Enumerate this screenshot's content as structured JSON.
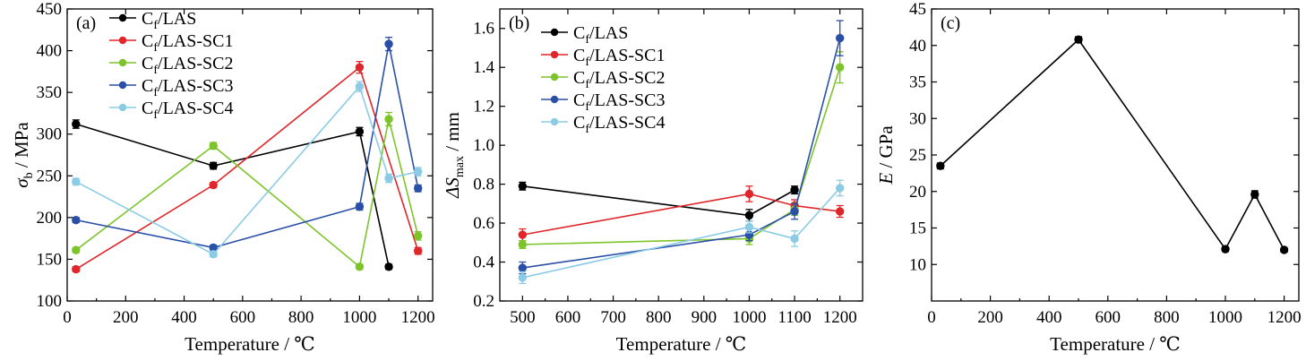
{
  "chart_data": [
    {
      "type": "line",
      "panel_label": "(a)",
      "xlabel": "Temperature / ℃",
      "ylabel": "σb / MPa",
      "xlim": [
        0,
        1250
      ],
      "ylim": [
        100,
        450
      ],
      "xticks": [
        0,
        200,
        400,
        600,
        800,
        1000,
        1200
      ],
      "yticks": [
        100,
        150,
        200,
        250,
        300,
        350,
        400,
        450
      ],
      "legend_position": "top-left",
      "series": [
        {
          "name": "Cf/LAS",
          "color": "#000000",
          "x": [
            30,
            500,
            1000,
            1100
          ],
          "y": [
            312,
            262,
            303,
            141
          ],
          "err": [
            5,
            4,
            5,
            3
          ]
        },
        {
          "name": "Cf/LAS-SC1",
          "color": "#e0262a",
          "x": [
            30,
            500,
            1000,
            1200
          ],
          "y": [
            138,
            239,
            380,
            160
          ],
          "err": [
            3,
            3,
            7,
            4
          ]
        },
        {
          "name": "Cf/LAS-SC2",
          "color": "#7dc42a",
          "x": [
            30,
            500,
            1000,
            1100,
            1200
          ],
          "y": [
            161,
            286,
            141,
            318,
            178
          ],
          "err": [
            3,
            4,
            3,
            8,
            5
          ]
        },
        {
          "name": "Cf/LAS-SC3",
          "color": "#2a4fa6",
          "x": [
            30,
            500,
            1000,
            1100,
            1200
          ],
          "y": [
            197,
            164,
            213,
            408,
            235
          ],
          "err": [
            3,
            3,
            4,
            8,
            4
          ]
        },
        {
          "name": "Cf/LAS-SC4",
          "color": "#8ccbe6",
          "x": [
            30,
            500,
            1000,
            1100,
            1200
          ],
          "y": [
            243,
            156,
            357,
            247,
            255
          ],
          "err": [
            4,
            3,
            6,
            5,
            5
          ]
        }
      ]
    },
    {
      "type": "line",
      "panel_label": "(b)",
      "xlabel": "Temperature / ℃",
      "ylabel": "ΔSmax / mm",
      "xlim": [
        450,
        1250
      ],
      "ylim": [
        0.2,
        1.7
      ],
      "xticks": [
        500,
        600,
        700,
        800,
        900,
        1000,
        1100,
        1200
      ],
      "yticks": [
        0.2,
        0.4,
        0.6,
        0.8,
        1.0,
        1.2,
        1.4,
        1.6
      ],
      "legend_position": "top-left",
      "series": [
        {
          "name": "Cf/LAS",
          "color": "#000000",
          "x": [
            500,
            1000,
            1100
          ],
          "y": [
            0.79,
            0.64,
            0.77
          ],
          "err": [
            0.02,
            0.03,
            0.02
          ]
        },
        {
          "name": "Cf/LAS-SC1",
          "color": "#e0262a",
          "x": [
            500,
            1000,
            1100,
            1200
          ],
          "y": [
            0.54,
            0.75,
            0.69,
            0.66
          ],
          "err": [
            0.03,
            0.04,
            0.03,
            0.03
          ]
        },
        {
          "name": "Cf/LAS-SC2",
          "color": "#7dc42a",
          "x": [
            500,
            1000,
            1100,
            1200
          ],
          "y": [
            0.49,
            0.52,
            0.67,
            1.4
          ],
          "err": [
            0.02,
            0.03,
            0.03,
            0.08
          ]
        },
        {
          "name": "Cf/LAS-SC3",
          "color": "#2a4fa6",
          "x": [
            500,
            1000,
            1100,
            1200
          ],
          "y": [
            0.37,
            0.54,
            0.66,
            1.55
          ],
          "err": [
            0.03,
            0.03,
            0.04,
            0.09
          ]
        },
        {
          "name": "Cf/LAS-SC4",
          "color": "#8ccbe6",
          "x": [
            500,
            1000,
            1100,
            1200
          ],
          "y": [
            0.32,
            0.58,
            0.52,
            0.78
          ],
          "err": [
            0.03,
            0.03,
            0.04,
            0.04
          ]
        }
      ]
    },
    {
      "type": "line",
      "panel_label": "(c)",
      "xlabel": "Temperature / ℃",
      "ylabel": "E / GPa",
      "xlim": [
        0,
        1250
      ],
      "ylim": [
        5,
        45
      ],
      "xticks": [
        0,
        200,
        400,
        600,
        800,
        1000,
        1200
      ],
      "yticks": [
        10,
        15,
        20,
        25,
        30,
        35,
        40,
        45
      ],
      "series": [
        {
          "name": "",
          "color": "#000000",
          "x": [
            30,
            500,
            1000,
            1100,
            1200
          ],
          "y": [
            23.5,
            40.8,
            12.1,
            19.6,
            12.0
          ],
          "err": [
            0.4,
            0.4,
            0.3,
            0.5,
            0.3
          ]
        }
      ]
    }
  ]
}
